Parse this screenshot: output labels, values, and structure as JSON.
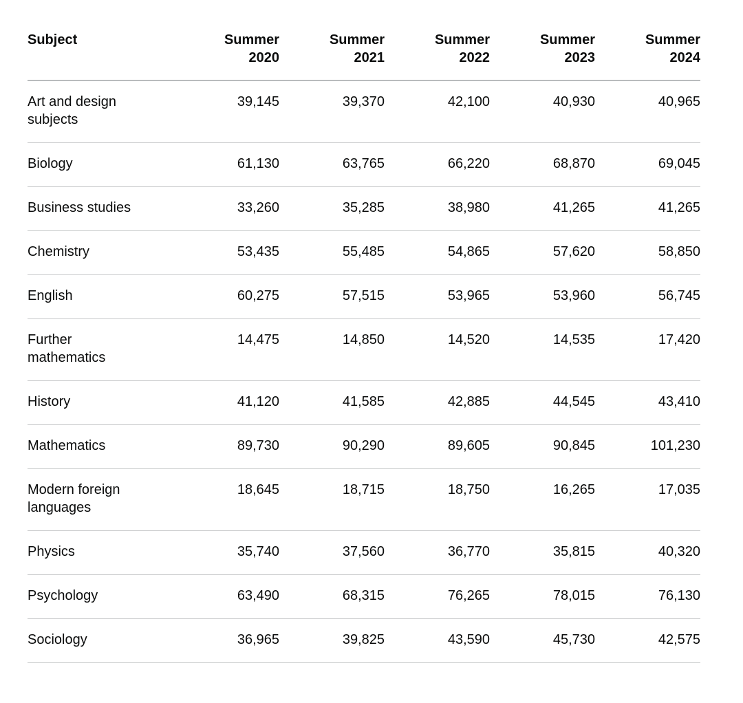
{
  "table": {
    "header": {
      "subject": "Subject",
      "years": [
        "Summer 2020",
        "Summer 2021",
        "Summer 2022",
        "Summer 2023",
        "Summer 2024"
      ]
    },
    "rows": [
      {
        "subject": "Art and design subjects",
        "values": [
          "39,145",
          "39,370",
          "42,100",
          "40,930",
          "40,965"
        ]
      },
      {
        "subject": "Biology",
        "values": [
          "61,130",
          "63,765",
          "66,220",
          "68,870",
          "69,045"
        ]
      },
      {
        "subject": "Business studies",
        "values": [
          "33,260",
          "35,285",
          "38,980",
          "41,265",
          "41,265"
        ]
      },
      {
        "subject": "Chemistry",
        "values": [
          "53,435",
          "55,485",
          "54,865",
          "57,620",
          "58,850"
        ]
      },
      {
        "subject": "English",
        "values": [
          "60,275",
          "57,515",
          "53,965",
          "53,960",
          "56,745"
        ]
      },
      {
        "subject": "Further mathematics",
        "values": [
          "14,475",
          "14,850",
          "14,520",
          "14,535",
          "17,420"
        ]
      },
      {
        "subject": "History",
        "values": [
          "41,120",
          "41,585",
          "42,885",
          "44,545",
          "43,410"
        ]
      },
      {
        "subject": "Mathematics",
        "values": [
          "89,730",
          "90,290",
          "89,605",
          "90,845",
          "101,230"
        ]
      },
      {
        "subject": "Modern foreign languages",
        "values": [
          "18,645",
          "18,715",
          "18,750",
          "16,265",
          "17,035"
        ]
      },
      {
        "subject": "Physics",
        "values": [
          "35,740",
          "37,560",
          "36,770",
          "35,815",
          "40,320"
        ]
      },
      {
        "subject": "Psychology",
        "values": [
          "63,490",
          "68,315",
          "76,265",
          "78,015",
          "76,130"
        ]
      },
      {
        "subject": "Sociology",
        "values": [
          "36,965",
          "39,825",
          "43,590",
          "45,730",
          "42,575"
        ]
      }
    ]
  },
  "colors": {
    "text": "#0b0c0c",
    "row_border": "#c8cacb",
    "header_border": "#b9bbbd",
    "background": "#ffffff"
  },
  "chart_data": {
    "type": "table",
    "title": "",
    "columns": [
      "Subject",
      "Summer 2020",
      "Summer 2021",
      "Summer 2022",
      "Summer 2023",
      "Summer 2024"
    ],
    "rows": [
      [
        "Art and design subjects",
        39145,
        39370,
        42100,
        40930,
        40965
      ],
      [
        "Biology",
        61130,
        63765,
        66220,
        68870,
        69045
      ],
      [
        "Business studies",
        33260,
        35285,
        38980,
        41265,
        41265
      ],
      [
        "Chemistry",
        53435,
        55485,
        54865,
        57620,
        58850
      ],
      [
        "English",
        60275,
        57515,
        53965,
        53960,
        56745
      ],
      [
        "Further mathematics",
        14475,
        14850,
        14520,
        14535,
        17420
      ],
      [
        "History",
        41120,
        41585,
        42885,
        44545,
        43410
      ],
      [
        "Mathematics",
        89730,
        90290,
        89605,
        90845,
        101230
      ],
      [
        "Modern foreign languages",
        18645,
        18715,
        18750,
        16265,
        17035
      ],
      [
        "Physics",
        35740,
        37560,
        36770,
        35815,
        40320
      ],
      [
        "Psychology",
        63490,
        68315,
        76265,
        78015,
        76130
      ],
      [
        "Sociology",
        36965,
        39825,
        43590,
        45730,
        42575
      ]
    ]
  }
}
